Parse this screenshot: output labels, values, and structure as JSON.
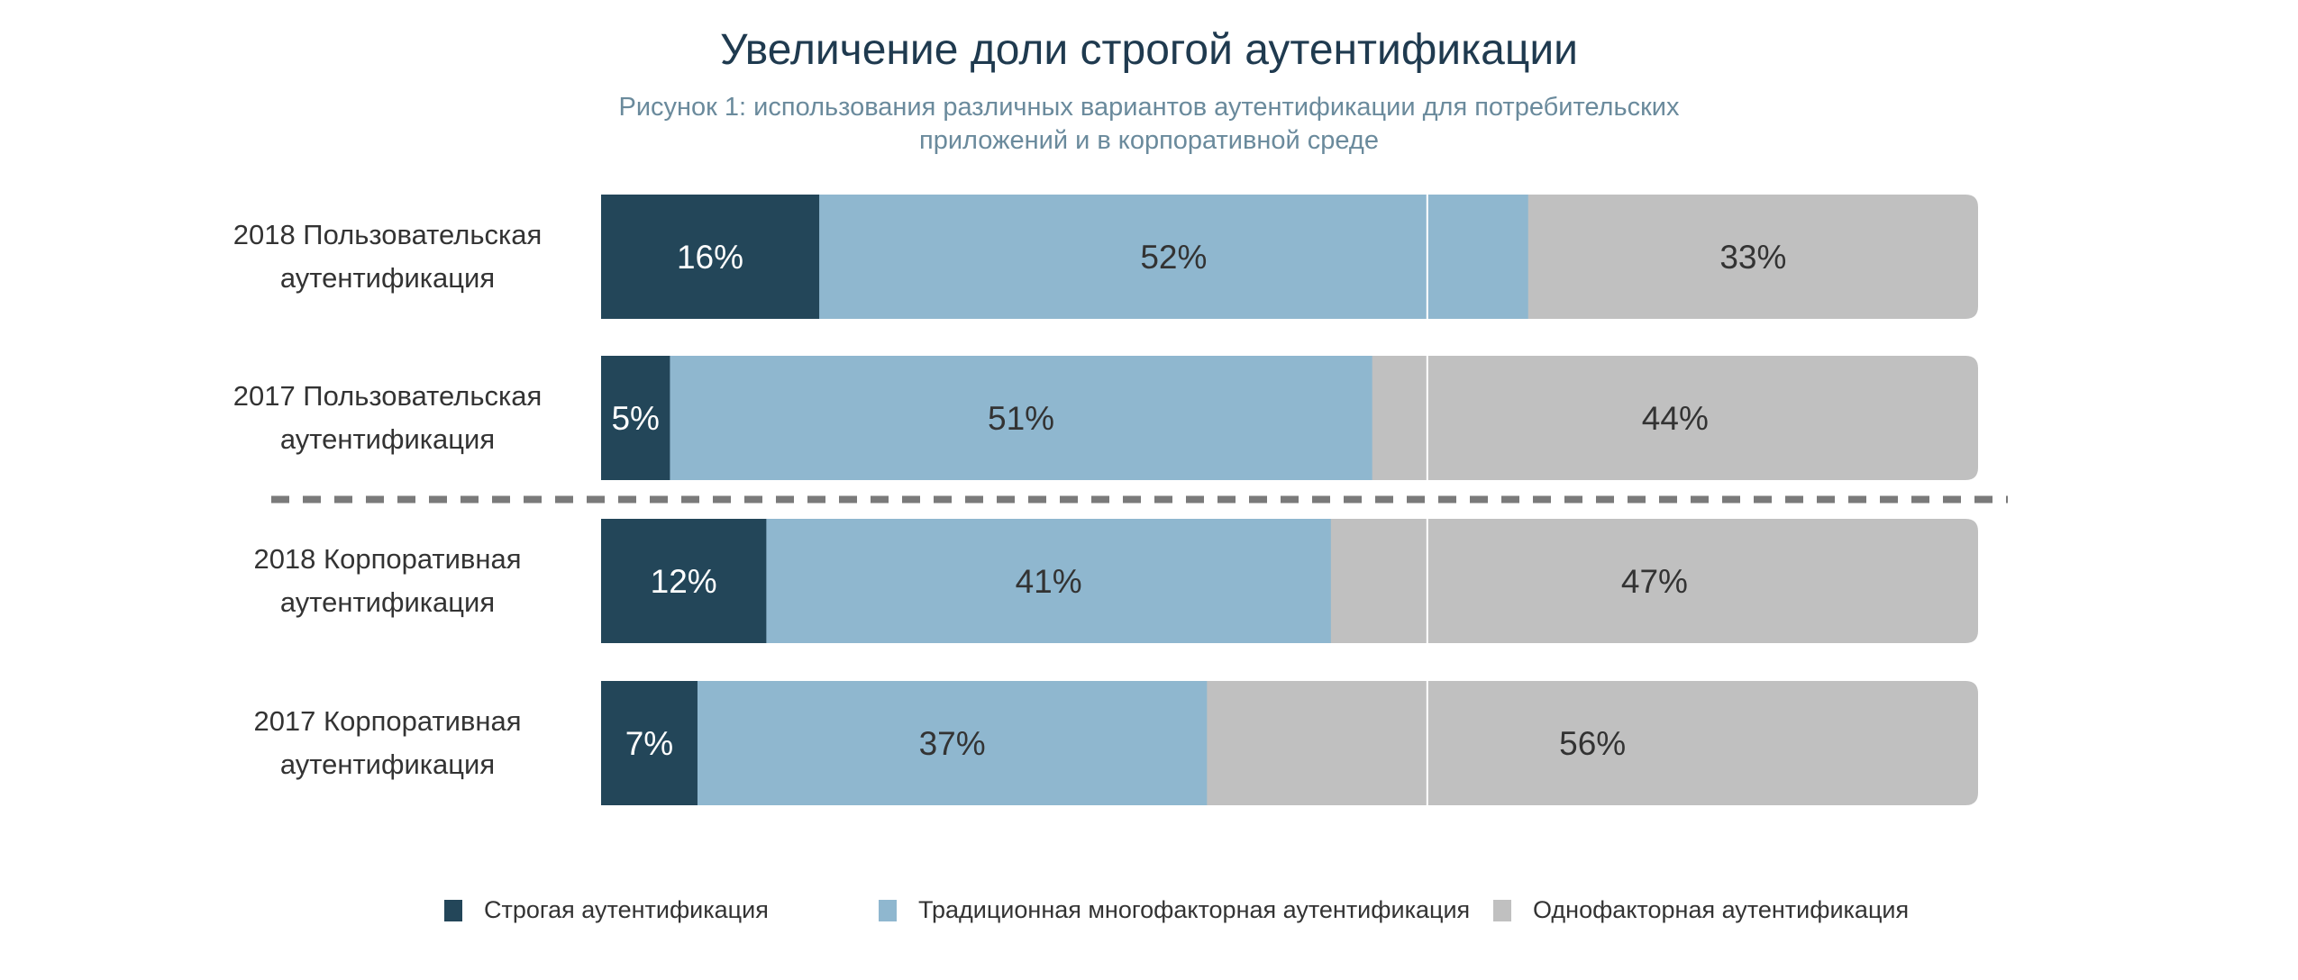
{
  "chart_data": {
    "type": "bar",
    "orientation": "horizontal-stacked",
    "title": "Увеличение доли строгой аутентификации",
    "subtitle_lines": [
      "Рисунок 1: использования различных вариантов аутентификации для потребительских",
      "приложений и в корпоративной среде"
    ],
    "categories": [
      [
        "2018 Пользовательская",
        "аутентификация"
      ],
      [
        "2017 Пользовательская",
        "аутентификация"
      ],
      [
        "2018 Корпоративная",
        "аутентификация"
      ],
      [
        "2017 Корпоративная",
        "аутентификация"
      ]
    ],
    "series": [
      {
        "name": "Строгая аутентификация",
        "color": "#234659",
        "label_color": "#ffffff",
        "values": [
          16,
          5,
          12,
          7
        ]
      },
      {
        "name": "Традиционная многофакторная аутентификация",
        "color": "#8fb7cf",
        "label_color": "#333333",
        "values": [
          52,
          51,
          41,
          37
        ]
      },
      {
        "name": "Однофакторная аутентификация",
        "color": "#c0c0c0",
        "label_color": "#333333",
        "values": [
          33,
          44,
          47,
          56
        ]
      }
    ],
    "value_suffix": "%",
    "xlim": [
      0,
      100
    ],
    "gridlines": [
      60
    ],
    "separator_after_category": 1,
    "legend_position": "bottom"
  }
}
